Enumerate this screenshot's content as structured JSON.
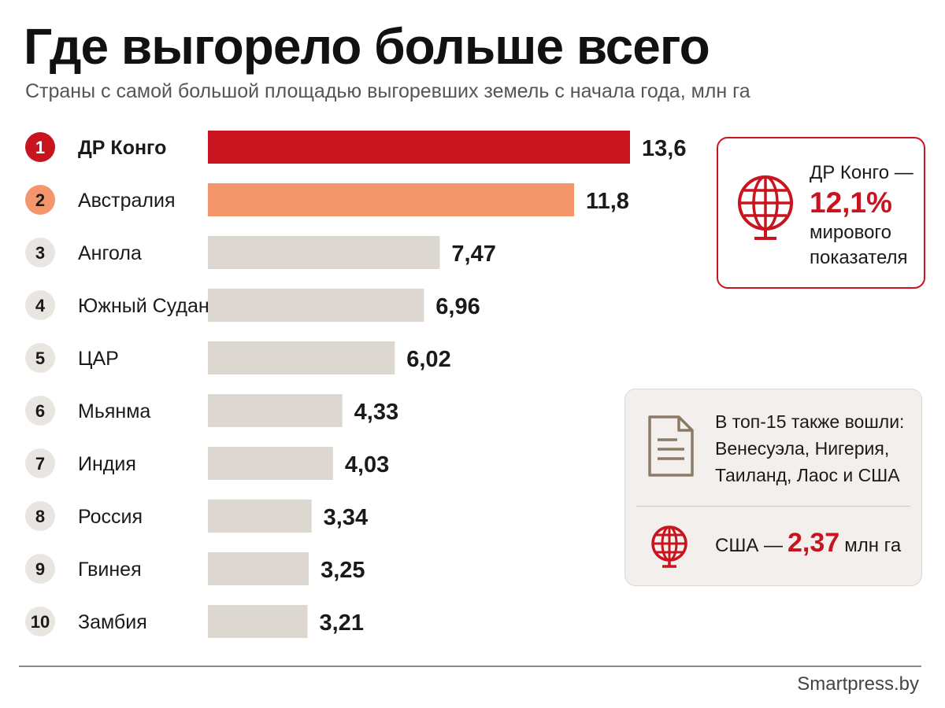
{
  "title": "Где выгорело больше всего",
  "subtitle": "Страны с самой большой площадью выгоревших земель с начала года, млн га",
  "colors": {
    "accent": "#c8141e",
    "second": "#f4966c",
    "neutral_bar": "#dcd7d1",
    "rank_circle": "#e9e6e2"
  },
  "chart_data": {
    "type": "bar",
    "orientation": "horizontal",
    "unit": "млн га",
    "ranks": [
      "1",
      "2",
      "3",
      "4",
      "5",
      "6",
      "7",
      "8",
      "9",
      "10"
    ],
    "categories": [
      "ДР Конго",
      "Австралия",
      "Ангола",
      "Южный Судан",
      "ЦАР",
      "Мьянма",
      "Индия",
      "Россия",
      "Гвинея",
      "Замбия"
    ],
    "values": [
      13.6,
      11.8,
      7.47,
      6.96,
      6.02,
      4.33,
      4.03,
      3.34,
      3.25,
      3.21
    ],
    "value_labels": [
      "13,6",
      "11,8",
      "7,47",
      "6,96",
      "6,02",
      "4,33",
      "4,03",
      "3,34",
      "3,25",
      "3,21"
    ],
    "xlim": [
      0,
      13.6
    ],
    "grid": false,
    "legend": "none"
  },
  "share_card": {
    "icon": "globe-icon",
    "line1": "ДР Конго —",
    "percent": "12,1%",
    "line2": "мирового",
    "line3": "показателя"
  },
  "top15_card": {
    "icon": "document-icon",
    "text": "В топ-15 также вошли: Венесуэла, Нигерия, Таиланд, Лаос и США",
    "usa_icon": "globe-icon",
    "usa_label": "США —",
    "usa_value": "2,37",
    "usa_unit": "млн га"
  },
  "source": "Smartpress.by"
}
